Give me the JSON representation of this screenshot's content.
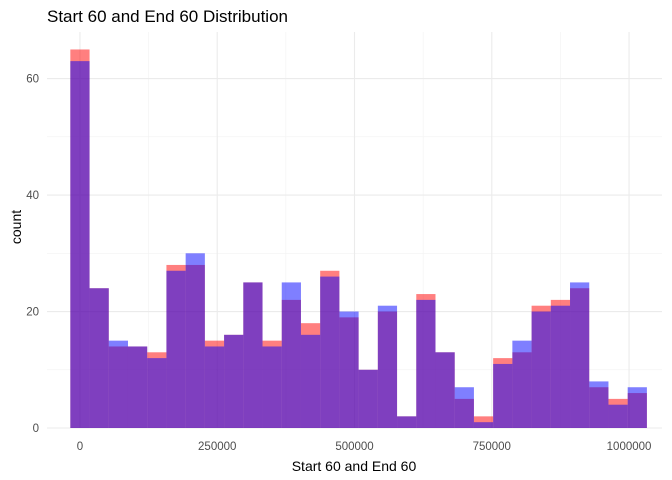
{
  "chart_data": {
    "type": "bar",
    "subtype": "overlapping-histogram",
    "title": "Start 60 and End 60 Distribution",
    "xlabel": "Start 60 and End 60",
    "ylabel": "count",
    "xlim": [
      -60000,
      1060000
    ],
    "ylim": [
      0,
      68
    ],
    "x_ticks": [
      0,
      250000,
      500000,
      750000,
      1000000
    ],
    "x_tick_labels": [
      "0",
      "250000",
      "500000",
      "750000",
      "1000000"
    ],
    "y_ticks": [
      0,
      20,
      40,
      60
    ],
    "y_tick_labels": [
      "0",
      "20",
      "40",
      "60"
    ],
    "bin_width": 35000,
    "bin_centers": [
      0,
      35000,
      70000,
      105000,
      140000,
      175000,
      210000,
      245000,
      280000,
      315000,
      350000,
      385000,
      420000,
      455000,
      490000,
      525000,
      560000,
      595000,
      630000,
      665000,
      700000,
      735000,
      770000,
      805000,
      840000,
      875000,
      910000,
      945000,
      980000,
      1015000
    ],
    "series": [
      {
        "color": "#f8766d",
        "fill": "#ff0000",
        "opacity": 0.5,
        "values": [
          65,
          24,
          14,
          14,
          13,
          28,
          28,
          15,
          16,
          25,
          15,
          22,
          18,
          27,
          19,
          10,
          20,
          2,
          23,
          13,
          5,
          2,
          12,
          13,
          21,
          22,
          24,
          7,
          5,
          6
        ]
      },
      {
        "color": "#0000ff",
        "fill": "#0000ff",
        "opacity": 0.5,
        "values": [
          63,
          24,
          15,
          14,
          12,
          27,
          30,
          14,
          16,
          25,
          14,
          25,
          16,
          26,
          20,
          10,
          21,
          2,
          22,
          13,
          7,
          1,
          11,
          15,
          20,
          21,
          25,
          8,
          4,
          7
        ]
      }
    ],
    "grid": true,
    "legend": "none"
  }
}
